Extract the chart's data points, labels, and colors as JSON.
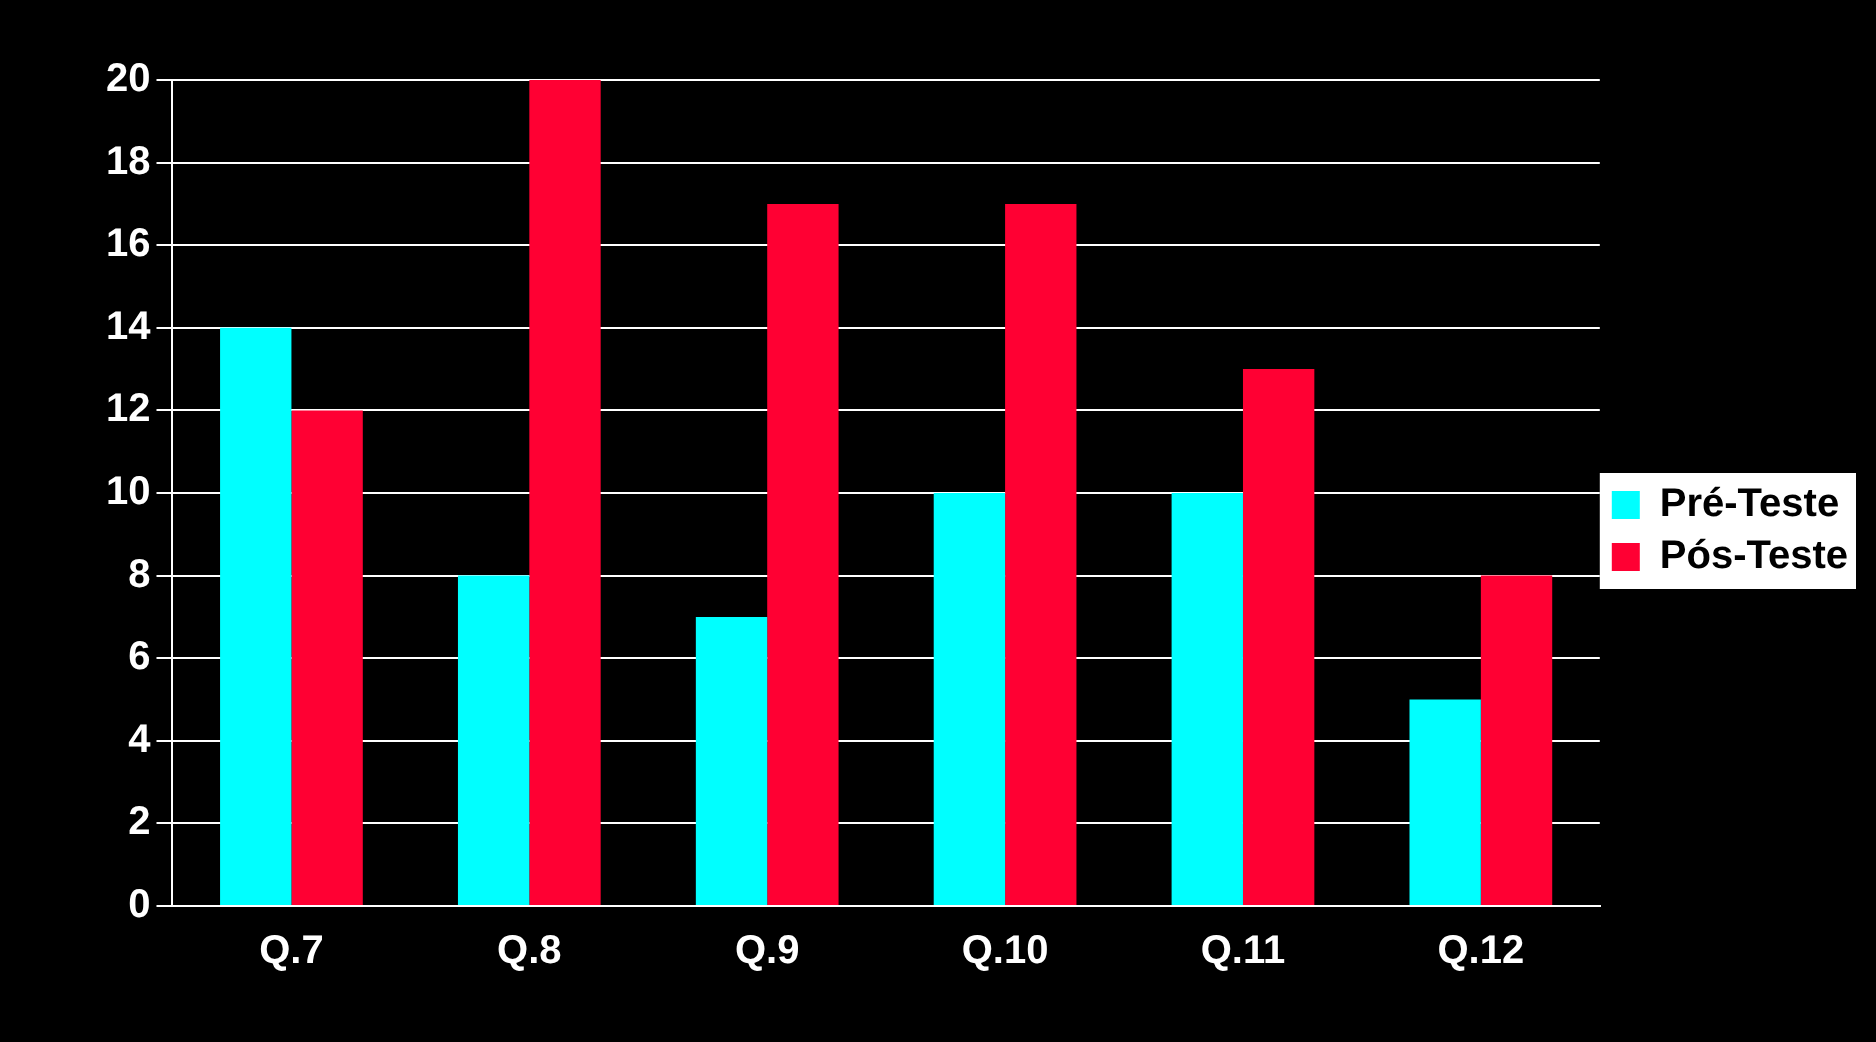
{
  "chart_data": {
    "type": "bar",
    "categories": [
      "Q.7",
      "Q.8",
      "Q.9",
      "Q.10",
      "Q.11",
      "Q.12"
    ],
    "series": [
      {
        "name": "Pré-Teste",
        "color": "#00ffff",
        "values": [
          14,
          8,
          7,
          10,
          10,
          5
        ]
      },
      {
        "name": "Pós-Teste",
        "color": "#ff0033",
        "values": [
          12,
          20,
          17,
          17,
          13,
          8
        ]
      }
    ],
    "ylim": [
      0,
      20
    ],
    "yticks": [
      0,
      2,
      4,
      6,
      8,
      10,
      12,
      14,
      16,
      18,
      20
    ],
    "grid": "y",
    "legend": "right"
  }
}
